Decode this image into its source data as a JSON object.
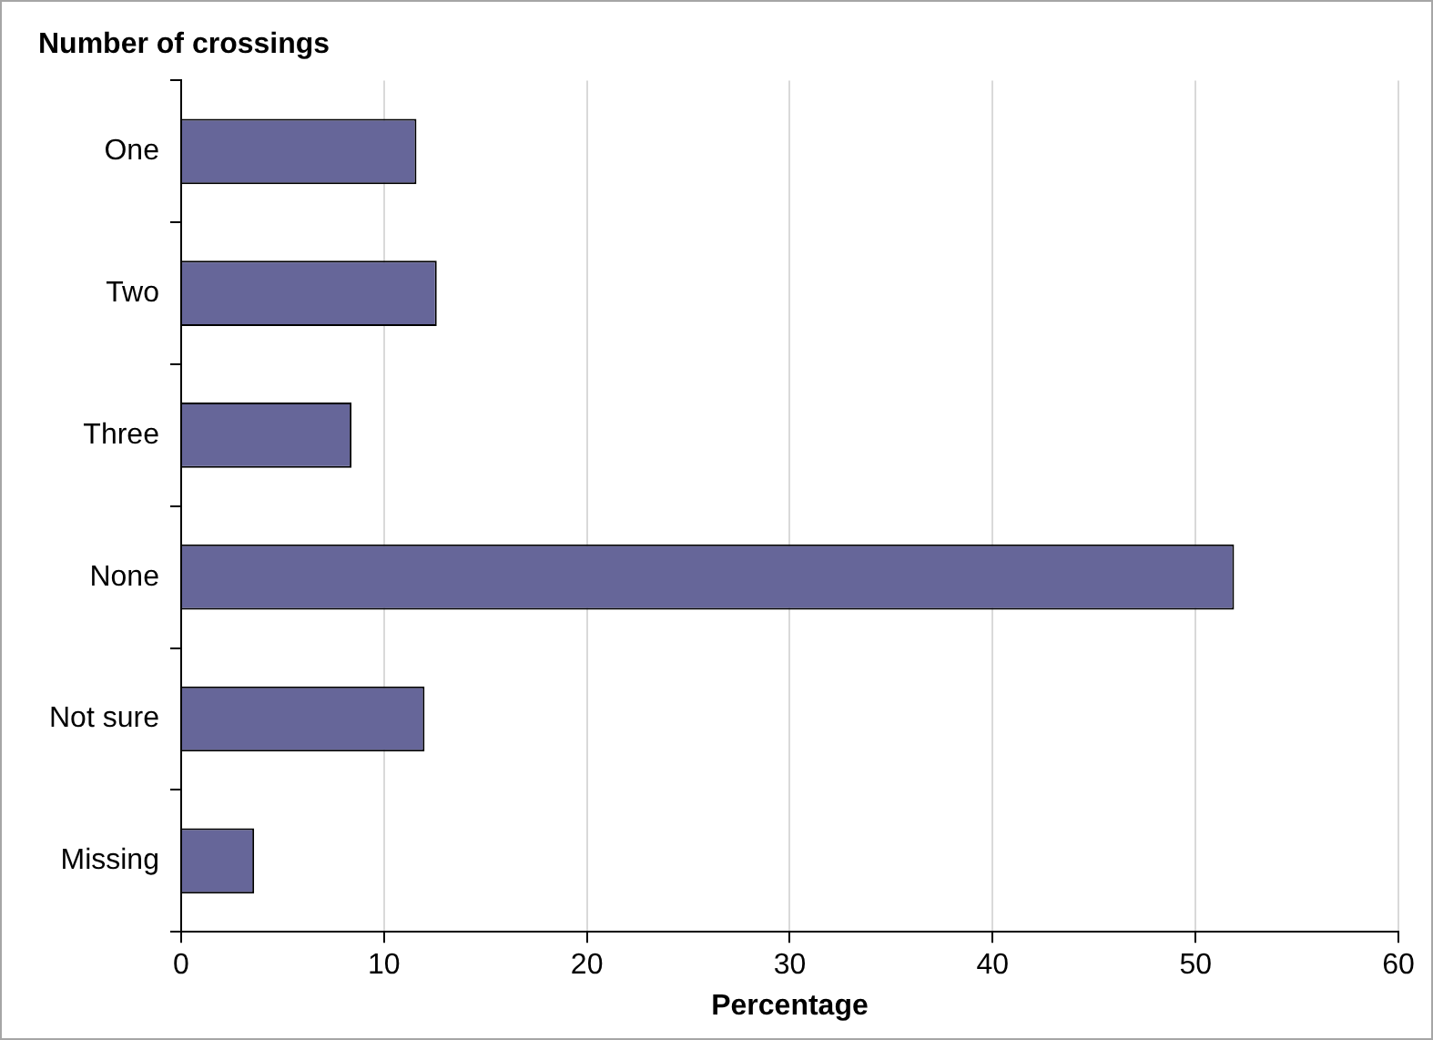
{
  "chart_data": {
    "type": "bar",
    "orientation": "horizontal",
    "title": "Number of crossings",
    "xlabel": "Percentage",
    "categories": [
      "One",
      "Two",
      "Three",
      "None",
      "Not sure",
      "Missing"
    ],
    "values": [
      11.6,
      12.6,
      8.4,
      51.9,
      12.0,
      3.6
    ],
    "color": "#666699",
    "xlim": [
      0,
      60
    ],
    "xticks": [
      0,
      10,
      20,
      30,
      40,
      50,
      60
    ],
    "grid": "x",
    "legend": false
  }
}
